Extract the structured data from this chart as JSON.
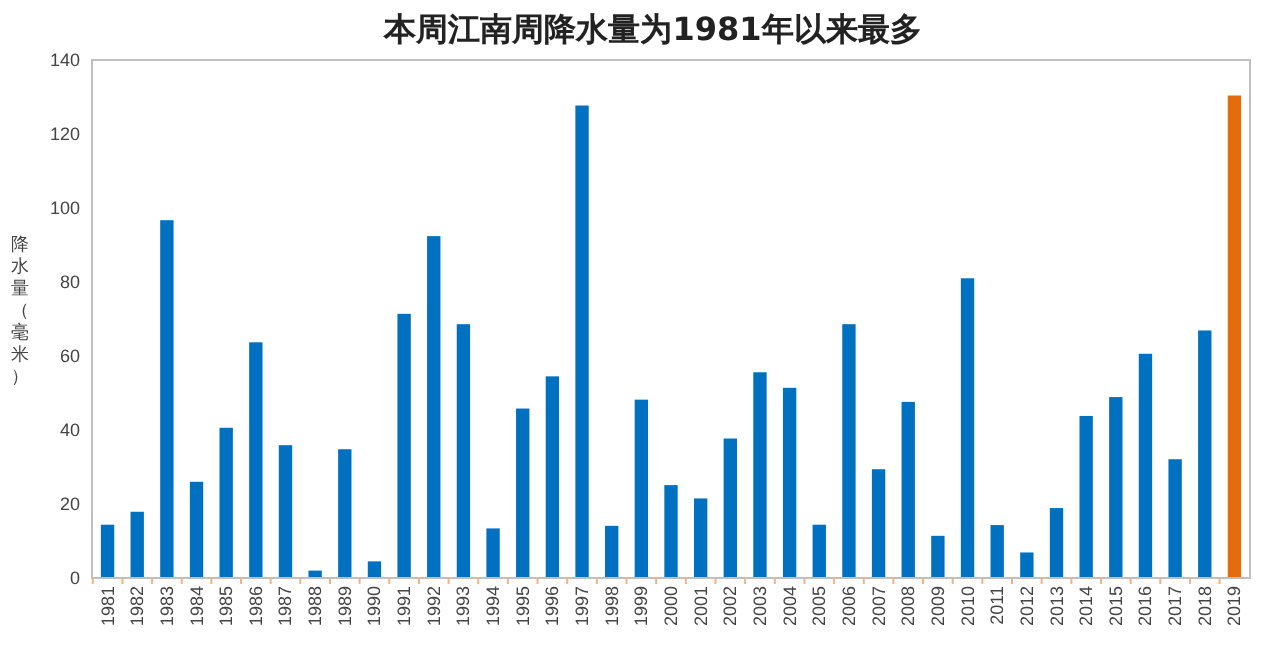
{
  "chart_data": {
    "type": "bar",
    "title": "本周江南周降水量为1981年以来最多",
    "ylabel": "降水量（毫米）",
    "categories": [
      "1981",
      "1982",
      "1983",
      "1984",
      "1985",
      "1986",
      "1987",
      "1988",
      "1989",
      "1990",
      "1991",
      "1992",
      "1993",
      "1994",
      "1995",
      "1996",
      "1997",
      "1998",
      "1999",
      "2000",
      "2001",
      "2002",
      "2003",
      "2004",
      "2005",
      "2006",
      "2007",
      "2008",
      "2009",
      "2010",
      "2011",
      "2012",
      "2013",
      "2014",
      "2015",
      "2016",
      "2017",
      "2018",
      "2019"
    ],
    "values": [
      14.4,
      17.9,
      96.7,
      26,
      40.6,
      63.7,
      35.9,
      2,
      34.8,
      4.5,
      71.4,
      92.4,
      68.6,
      13.4,
      45.8,
      54.5,
      127.7,
      14.1,
      48.2,
      25.1,
      21.5,
      37.7,
      55.6,
      51.4,
      14.4,
      68.6,
      29.4,
      47.6,
      11.4,
      81,
      14.3,
      6.9,
      18.9,
      43.8,
      48.9,
      60.6,
      32.1,
      66.9,
      130.4
    ],
    "colors": [
      "#0070c0",
      "#0070c0",
      "#0070c0",
      "#0070c0",
      "#0070c0",
      "#0070c0",
      "#0070c0",
      "#0070c0",
      "#0070c0",
      "#0070c0",
      "#0070c0",
      "#0070c0",
      "#0070c0",
      "#0070c0",
      "#0070c0",
      "#0070c0",
      "#0070c0",
      "#0070c0",
      "#0070c0",
      "#0070c0",
      "#0070c0",
      "#0070c0",
      "#0070c0",
      "#0070c0",
      "#0070c0",
      "#0070c0",
      "#0070c0",
      "#0070c0",
      "#0070c0",
      "#0070c0",
      "#0070c0",
      "#0070c0",
      "#0070c0",
      "#0070c0",
      "#0070c0",
      "#0070c0",
      "#0070c0",
      "#0070c0",
      "#e46c0a"
    ],
    "ylim": [
      0,
      140
    ],
    "yticks": [
      0,
      20,
      40,
      60,
      80,
      100,
      120,
      140
    ],
    "grid": false
  }
}
